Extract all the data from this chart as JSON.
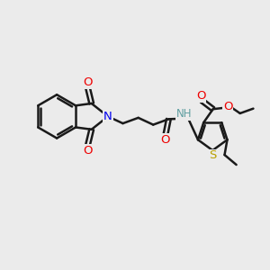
{
  "bg_color": "#ebebeb",
  "bond_color": "#1a1a1a",
  "N_color": "#0000ee",
  "O_color": "#ee0000",
  "S_color": "#b8a000",
  "NH_color": "#5f9ea0",
  "linewidth": 1.8,
  "figsize": [
    3.0,
    3.0
  ],
  "dpi": 100,
  "xlim": [
    0,
    10
  ],
  "ylim": [
    0,
    10
  ]
}
